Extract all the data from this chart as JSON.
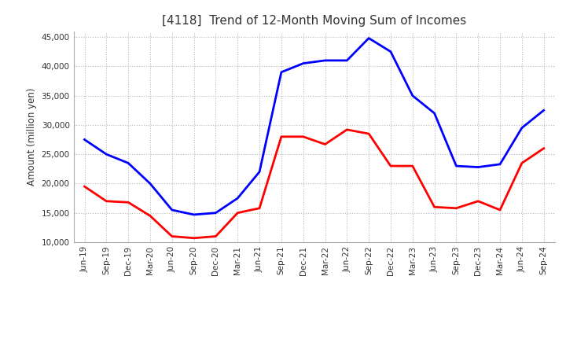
{
  "title": "[4118]  Trend of 12-Month Moving Sum of Incomes",
  "ylabel": "Amount (million yen)",
  "ylim": [
    10000,
    46000
  ],
  "yticks": [
    10000,
    15000,
    20000,
    25000,
    30000,
    35000,
    40000,
    45000
  ],
  "labels": [
    "Jun-19",
    "Sep-19",
    "Dec-19",
    "Mar-20",
    "Jun-20",
    "Sep-20",
    "Dec-20",
    "Mar-21",
    "Jun-21",
    "Sep-21",
    "Dec-21",
    "Mar-22",
    "Jun-22",
    "Sep-22",
    "Dec-22",
    "Mar-23",
    "Jun-23",
    "Sep-23",
    "Dec-23",
    "Mar-24",
    "Jun-24",
    "Sep-24"
  ],
  "ordinary_income": [
    27500,
    25000,
    23500,
    20000,
    15500,
    14700,
    15000,
    17500,
    22000,
    39000,
    40500,
    41000,
    41000,
    44800,
    42500,
    35000,
    32000,
    23000,
    22800,
    23300,
    29500,
    32500
  ],
  "net_income": [
    19500,
    17000,
    16800,
    14500,
    11000,
    10700,
    11000,
    15000,
    15800,
    28000,
    28000,
    26700,
    29200,
    28500,
    23000,
    23000,
    16000,
    15800,
    17000,
    15500,
    23500,
    26000
  ],
  "ordinary_color": "#0000FF",
  "net_color": "#FF0000",
  "line_width": 2.0,
  "background_color": "#FFFFFF",
  "grid_color": "#999999",
  "title_color": "#333333",
  "tick_color": "#333333"
}
